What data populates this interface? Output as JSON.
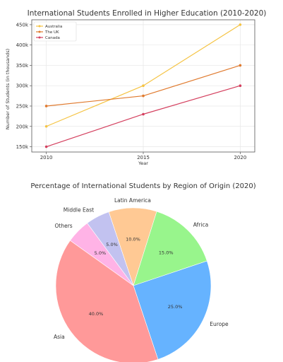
{
  "chart_data": [
    {
      "type": "line",
      "title": "International Students Enrolled in Higher Education (2010-2020)",
      "xlabel": "Year",
      "ylabel": "Number of Students (in thousands)",
      "x": [
        2010,
        2015,
        2020
      ],
      "ylim": [
        137000,
        462000
      ],
      "yticks": [
        150000,
        200000,
        250000,
        300000,
        350000,
        400000,
        450000
      ],
      "ytick_labels": [
        "150k",
        "200k",
        "250k",
        "300k",
        "350k",
        "400k",
        "450k"
      ],
      "xtick_labels": [
        "2010",
        "2015",
        "2020"
      ],
      "grid": true,
      "legend_position": "top-left",
      "series": [
        {
          "name": "Australia",
          "values": [
            200000,
            300000,
            450000
          ],
          "color": "#f5c342"
        },
        {
          "name": "The UK",
          "values": [
            250000,
            275000,
            350000
          ],
          "color": "#e07a2e"
        },
        {
          "name": "Canada",
          "values": [
            150000,
            230000,
            300000
          ],
          "color": "#d43f5e"
        }
      ]
    },
    {
      "type": "pie",
      "title": "Percentage of International Students by Region of Origin (2020)",
      "slices": [
        {
          "label": "Latin America",
          "value": 10.0,
          "pct": "10.0%",
          "color": "#ffc994"
        },
        {
          "label": "Africa",
          "value": 15.0,
          "pct": "15.0%",
          "color": "#98f58c"
        },
        {
          "label": "Europe",
          "value": 25.0,
          "pct": "25.0%",
          "color": "#66b3ff"
        },
        {
          "label": "Asia",
          "value": 40.0,
          "pct": "40.0%",
          "color": "#ff9999"
        },
        {
          "label": "Others",
          "value": 5.0,
          "pct": "5.0%",
          "color": "#ffb3e6"
        },
        {
          "label": "Middle East",
          "value": 5.0,
          "pct": "5.0%",
          "color": "#c2c2f0"
        }
      ]
    }
  ]
}
